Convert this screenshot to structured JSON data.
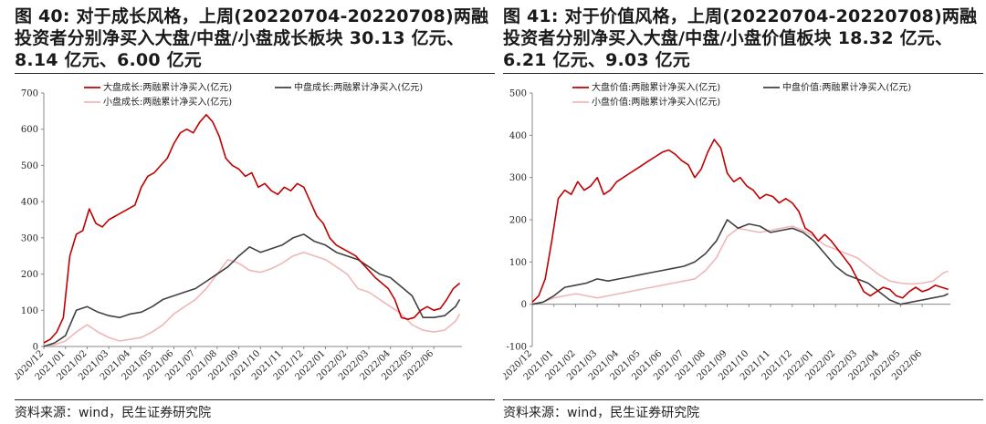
{
  "source_text": "资料来源：wind，民生证券研究院",
  "colors": {
    "large": "#c00000",
    "mid": "#404040",
    "small": "#f0b7b7",
    "axis": "#888888"
  },
  "x_tick_labels": [
    "2020/12",
    "2021/01",
    "2021/02",
    "2021/03",
    "2021/04",
    "2021/05",
    "2021/06",
    "2021/07",
    "2021/08",
    "2021/09",
    "2021/10",
    "2021/11",
    "2021/12",
    "2022/01",
    "2022/02",
    "2022/03",
    "2022/04",
    "2022/05",
    "2022/06"
  ],
  "chart_data": [
    {
      "type": "line",
      "figure_title": "图 40: 对于成长风格，上周(20220704-20220708)两融投资者分别净买入大盘/中盘/小盘成长板块 30.13 亿元、8.14 亿元、6.00 亿元",
      "ylim": [
        0,
        700
      ],
      "yticks": [
        0,
        100,
        200,
        300,
        400,
        500,
        600,
        700
      ],
      "x_range": [
        0,
        19.3
      ],
      "legend": [
        "大盘成长:两融累计净买入(亿元)",
        "中盘成长:两融累计净买入(亿元)",
        "小盘成长:两融累计净买入(亿元)"
      ],
      "series": [
        {
          "name": "大盘成长:两融累计净买入(亿元)",
          "color_key": "large",
          "x": [
            0,
            0.3,
            0.6,
            0.9,
            1.2,
            1.5,
            1.8,
            2.1,
            2.4,
            2.7,
            3.0,
            3.3,
            3.6,
            3.9,
            4.2,
            4.5,
            4.8,
            5.1,
            5.4,
            5.7,
            6.0,
            6.3,
            6.6,
            6.9,
            7.2,
            7.5,
            7.8,
            8.1,
            8.4,
            8.7,
            9.0,
            9.3,
            9.6,
            9.9,
            10.2,
            10.5,
            10.8,
            11.1,
            11.4,
            11.7,
            12.0,
            12.3,
            12.6,
            12.9,
            13.2,
            13.5,
            13.8,
            14.1,
            14.4,
            14.7,
            15.0,
            15.3,
            15.6,
            15.9,
            16.2,
            16.5,
            16.8,
            17.1,
            17.4,
            17.7,
            18.0,
            18.3,
            18.6,
            18.9,
            19.2
          ],
          "values": [
            10,
            20,
            40,
            80,
            250,
            310,
            320,
            380,
            340,
            330,
            350,
            360,
            370,
            380,
            390,
            440,
            470,
            480,
            500,
            520,
            560,
            590,
            600,
            590,
            620,
            640,
            620,
            580,
            520,
            500,
            490,
            470,
            480,
            440,
            450,
            430,
            420,
            440,
            430,
            450,
            440,
            400,
            360,
            340,
            300,
            280,
            270,
            260,
            250,
            230,
            210,
            190,
            175,
            160,
            130,
            80,
            75,
            80,
            100,
            110,
            100,
            105,
            130,
            160,
            175
          ]
        },
        {
          "name": "中盘成长:两融累计净买入(亿元)",
          "color_key": "mid",
          "x": [
            0,
            0.5,
            1.0,
            1.5,
            2.0,
            2.5,
            3.0,
            3.5,
            4.0,
            4.5,
            5.0,
            5.5,
            6.0,
            6.5,
            7.0,
            7.5,
            8.0,
            8.5,
            9.0,
            9.5,
            10.0,
            10.5,
            11.0,
            11.5,
            12.0,
            12.5,
            13.0,
            13.5,
            14.0,
            14.5,
            15.0,
            15.5,
            16.0,
            16.5,
            17.0,
            17.5,
            18.0,
            18.5,
            19.0,
            19.2
          ],
          "values": [
            0,
            10,
            30,
            100,
            110,
            95,
            85,
            80,
            90,
            95,
            110,
            130,
            140,
            150,
            160,
            180,
            200,
            220,
            250,
            275,
            260,
            270,
            280,
            300,
            310,
            290,
            280,
            260,
            250,
            240,
            220,
            200,
            190,
            165,
            140,
            80,
            80,
            85,
            110,
            130
          ]
        },
        {
          "name": "小盘成长:两融累计净买入(亿元)",
          "color_key": "small",
          "x": [
            0,
            0.5,
            1.0,
            1.5,
            2.0,
            2.5,
            3.0,
            3.5,
            4.0,
            4.5,
            5.0,
            5.5,
            6.0,
            6.5,
            7.0,
            7.5,
            8.0,
            8.5,
            9.0,
            9.5,
            10.0,
            10.5,
            11.0,
            11.5,
            12.0,
            12.5,
            13.0,
            13.5,
            14.0,
            14.5,
            15.0,
            15.5,
            16.0,
            16.5,
            17.0,
            17.5,
            18.0,
            18.5,
            19.0,
            19.2
          ],
          "values": [
            0,
            5,
            15,
            40,
            60,
            40,
            25,
            15,
            20,
            25,
            40,
            60,
            90,
            110,
            130,
            160,
            200,
            240,
            230,
            210,
            205,
            215,
            230,
            250,
            260,
            250,
            240,
            220,
            200,
            160,
            150,
            130,
            110,
            90,
            60,
            45,
            40,
            45,
            70,
            90
          ]
        }
      ]
    },
    {
      "type": "line",
      "figure_title": "图 41: 对于价值风格，上周(20220704-20220708)两融投资者分别净买入大盘/中盘/小盘价值板块 18.32 亿元、6.21 亿元、9.03 亿元",
      "ylim": [
        -100,
        500
      ],
      "yticks": [
        -100,
        0,
        100,
        200,
        300,
        400,
        500
      ],
      "x_range": [
        0,
        19.3
      ],
      "legend": [
        "大盘价值:两融累计净买入(亿元)",
        "中盘价值:两融累计净买入(亿元)",
        "小盘价值:两融累计净买入(亿元)"
      ],
      "series": [
        {
          "name": "大盘价值:两融累计净买入(亿元)",
          "color_key": "large",
          "x": [
            0,
            0.3,
            0.6,
            0.9,
            1.2,
            1.5,
            1.8,
            2.1,
            2.4,
            2.7,
            3.0,
            3.3,
            3.6,
            3.9,
            4.2,
            4.5,
            4.8,
            5.1,
            5.4,
            5.7,
            6.0,
            6.3,
            6.6,
            6.9,
            7.2,
            7.5,
            7.8,
            8.1,
            8.4,
            8.7,
            9.0,
            9.3,
            9.6,
            9.9,
            10.2,
            10.5,
            10.8,
            11.1,
            11.4,
            11.7,
            12.0,
            12.3,
            12.6,
            12.9,
            13.2,
            13.5,
            13.8,
            14.1,
            14.4,
            14.7,
            15.0,
            15.3,
            15.6,
            15.9,
            16.2,
            16.5,
            16.8,
            17.1,
            17.4,
            17.7,
            18.0,
            18.3,
            18.6,
            18.9,
            19.2
          ],
          "values": [
            5,
            20,
            60,
            150,
            250,
            270,
            260,
            290,
            270,
            280,
            300,
            260,
            270,
            290,
            300,
            310,
            320,
            330,
            340,
            350,
            360,
            365,
            355,
            340,
            330,
            300,
            320,
            360,
            390,
            370,
            310,
            290,
            300,
            280,
            270,
            250,
            260,
            255,
            240,
            250,
            240,
            220,
            180,
            170,
            150,
            165,
            150,
            130,
            110,
            90,
            60,
            30,
            20,
            30,
            40,
            35,
            20,
            15,
            30,
            40,
            30,
            35,
            45,
            40,
            35
          ]
        },
        {
          "name": "中盘价值:两融累计净买入(亿元)",
          "color_key": "mid",
          "x": [
            0,
            0.5,
            1.0,
            1.5,
            2.0,
            2.5,
            3.0,
            3.5,
            4.0,
            4.5,
            5.0,
            5.5,
            6.0,
            6.5,
            7.0,
            7.5,
            8.0,
            8.5,
            9.0,
            9.5,
            10.0,
            10.5,
            11.0,
            11.5,
            12.0,
            12.5,
            13.0,
            13.5,
            14.0,
            14.5,
            15.0,
            15.5,
            16.0,
            16.5,
            17.0,
            17.5,
            18.0,
            18.5,
            19.0,
            19.2
          ],
          "values": [
            0,
            5,
            20,
            40,
            45,
            50,
            60,
            55,
            60,
            65,
            70,
            75,
            80,
            85,
            90,
            100,
            120,
            150,
            200,
            180,
            190,
            185,
            170,
            175,
            180,
            170,
            150,
            120,
            90,
            70,
            60,
            50,
            30,
            10,
            0,
            5,
            10,
            15,
            20,
            25
          ]
        },
        {
          "name": "小盘价值:两融累计净买入(亿元)",
          "color_key": "small",
          "x": [
            0,
            0.5,
            1.0,
            1.5,
            2.0,
            2.5,
            3.0,
            3.5,
            4.0,
            4.5,
            5.0,
            5.5,
            6.0,
            6.5,
            7.0,
            7.5,
            8.0,
            8.5,
            9.0,
            9.5,
            10.0,
            10.5,
            11.0,
            11.5,
            12.0,
            12.5,
            13.0,
            13.5,
            14.0,
            14.5,
            15.0,
            15.5,
            16.0,
            16.5,
            17.0,
            17.5,
            18.0,
            18.5,
            19.0,
            19.2
          ],
          "values": [
            0,
            5,
            15,
            20,
            25,
            20,
            15,
            20,
            25,
            30,
            35,
            40,
            45,
            50,
            55,
            60,
            80,
            110,
            160,
            180,
            175,
            170,
            175,
            180,
            185,
            175,
            160,
            140,
            130,
            120,
            110,
            90,
            70,
            55,
            50,
            48,
            50,
            55,
            75,
            78
          ]
        }
      ]
    }
  ]
}
